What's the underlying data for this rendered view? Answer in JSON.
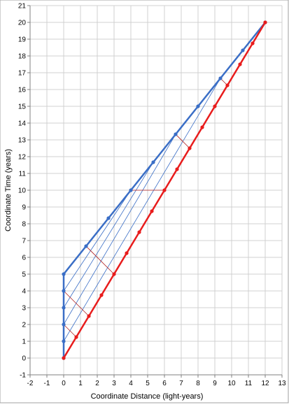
{
  "chart_data": {
    "type": "line",
    "title": "",
    "xlabel": "Coordinate Distance (light-years)",
    "ylabel": "Coordinate Time (years)",
    "xlim": [
      -2,
      13
    ],
    "ylim": [
      -1,
      21
    ],
    "xticks": [
      -2,
      -1,
      0,
      1,
      2,
      3,
      4,
      5,
      6,
      7,
      8,
      9,
      10,
      11,
      12,
      13
    ],
    "yticks": [
      -1,
      0,
      1,
      2,
      3,
      4,
      5,
      6,
      7,
      8,
      9,
      10,
      11,
      12,
      13,
      14,
      15,
      16,
      17,
      18,
      19,
      20,
      21
    ],
    "grid": true,
    "legend": "none",
    "series": [
      {
        "color": "#3a6ec6",
        "points": [
          [
            0,
            0
          ],
          [
            0,
            1
          ],
          [
            0,
            2
          ],
          [
            0,
            3
          ],
          [
            0,
            4
          ],
          [
            0,
            5
          ],
          [
            1.333,
            6.667
          ],
          [
            2.667,
            8.333
          ],
          [
            4,
            10
          ],
          [
            5.333,
            11.667
          ],
          [
            6.667,
            13.333
          ],
          [
            8,
            15
          ],
          [
            9.333,
            16.667
          ],
          [
            10.667,
            18.333
          ],
          [
            12,
            20
          ]
        ]
      },
      {
        "color": "#e81c1c",
        "points": [
          [
            0,
            0
          ],
          [
            0.75,
            1.25
          ],
          [
            1.5,
            2.5
          ],
          [
            2.25,
            3.75
          ],
          [
            3,
            5
          ],
          [
            3.75,
            6.25
          ],
          [
            4.5,
            7.5
          ],
          [
            5.25,
            8.75
          ],
          [
            6,
            10
          ],
          [
            6.75,
            11.25
          ],
          [
            7.5,
            12.5
          ],
          [
            8.25,
            13.75
          ],
          [
            9,
            15
          ],
          [
            9.75,
            16.25
          ],
          [
            10.5,
            17.5
          ],
          [
            11.25,
            18.75
          ],
          [
            12,
            20
          ]
        ]
      }
    ],
    "connectors_blue": [
      [
        [
          0,
          1
        ],
        [
          9.333,
          16.667
        ]
      ],
      [
        [
          0,
          2
        ],
        [
          6.667,
          13.333
        ]
      ],
      [
        [
          0,
          3
        ],
        [
          5.333,
          11.667
        ]
      ],
      [
        [
          0,
          4
        ],
        [
          4,
          10
        ]
      ],
      [
        [
          0,
          5
        ],
        [
          2.667,
          8.333
        ]
      ]
    ],
    "connectors_red": [
      [
        [
          0,
          2
        ],
        [
          0.75,
          1.25
        ]
      ],
      [
        [
          0,
          4
        ],
        [
          1.5,
          2.5
        ]
      ],
      [
        [
          1.333,
          6.667
        ],
        [
          3,
          5
        ]
      ],
      [
        [
          4,
          10
        ],
        [
          6,
          10
        ]
      ],
      [
        [
          6.667,
          13.333
        ],
        [
          7.5,
          12.5
        ]
      ],
      [
        [
          9.333,
          16.667
        ],
        [
          9.75,
          16.25
        ]
      ]
    ]
  }
}
